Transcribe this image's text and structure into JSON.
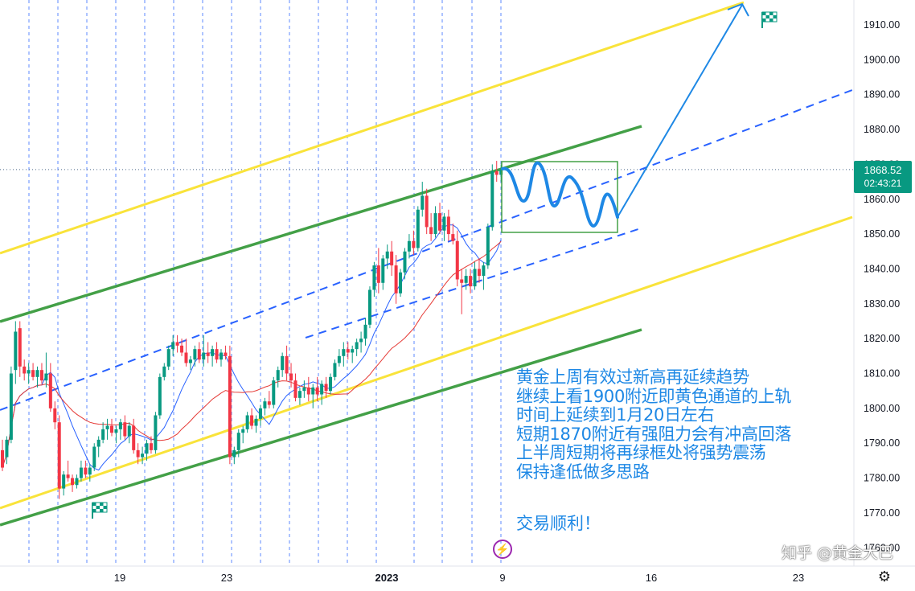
{
  "chart_data": {
    "type": "candlestick",
    "title": "",
    "y_axis": {
      "ticks": [
        "1910.00",
        "1900.00",
        "1890.00",
        "1880.00",
        "1870.00",
        "1860.00",
        "1850.00",
        "1840.00",
        "1830.00",
        "1820.00",
        "1810.00",
        "1800.00",
        "1790.00",
        "1780.00",
        "1770.00",
        "1760.00"
      ],
      "ylim": [
        1757,
        1914
      ]
    },
    "x_axis": {
      "ticks": [
        {
          "label": "19",
          "bold": false
        },
        {
          "label": "23",
          "bold": false
        },
        {
          "label": "2023",
          "bold": true
        },
        {
          "label": "9",
          "bold": false
        },
        {
          "label": "16",
          "bold": false
        },
        {
          "label": "23",
          "bold": false
        }
      ]
    },
    "last_price": "1868.52",
    "countdown": "02:43:21",
    "candles": [
      [
        1788,
        1791,
        1782,
        1783
      ],
      [
        1786,
        1792,
        1784,
        1791
      ],
      [
        1791,
        1812,
        1790,
        1810
      ],
      [
        1811,
        1825,
        1807,
        1822
      ],
      [
        1823,
        1825,
        1809,
        1812
      ],
      [
        1812,
        1814,
        1808,
        1810
      ],
      [
        1810,
        1813,
        1807,
        1811
      ],
      [
        1811,
        1813,
        1808,
        1809
      ],
      [
        1809,
        1812,
        1806,
        1811
      ],
      [
        1811,
        1813,
        1807,
        1808
      ],
      [
        1808,
        1816,
        1806,
        1810
      ],
      [
        1810,
        1813,
        1799,
        1800
      ],
      [
        1800,
        1802,
        1794,
        1796
      ],
      [
        1796,
        1798,
        1774,
        1777
      ],
      [
        1777,
        1782,
        1775,
        1781
      ],
      [
        1781,
        1785,
        1779,
        1780
      ],
      [
        1780,
        1781,
        1776,
        1778
      ],
      [
        1778,
        1781,
        1777,
        1780
      ],
      [
        1780,
        1785,
        1779,
        1783
      ],
      [
        1783,
        1785,
        1780,
        1781
      ],
      [
        1781,
        1784,
        1779,
        1783
      ],
      [
        1783,
        1790,
        1782,
        1789
      ],
      [
        1789,
        1792,
        1786,
        1791
      ],
      [
        1791,
        1796,
        1790,
        1794
      ],
      [
        1794,
        1797,
        1791,
        1795
      ],
      [
        1795,
        1797,
        1792,
        1793
      ],
      [
        1793,
        1795,
        1790,
        1794
      ],
      [
        1794,
        1797,
        1791,
        1796
      ],
      [
        1796,
        1798,
        1791,
        1792
      ],
      [
        1792,
        1796,
        1790,
        1795
      ],
      [
        1795,
        1797,
        1787,
        1788
      ],
      [
        1788,
        1790,
        1784,
        1786
      ],
      [
        1786,
        1789,
        1784,
        1787
      ],
      [
        1787,
        1791,
        1785,
        1790
      ],
      [
        1790,
        1792,
        1787,
        1788
      ],
      [
        1788,
        1799,
        1787,
        1798
      ],
      [
        1798,
        1810,
        1797,
        1809
      ],
      [
        1809,
        1813,
        1808,
        1812
      ],
      [
        1812,
        1818,
        1811,
        1817
      ],
      [
        1817,
        1821,
        1815,
        1819
      ],
      [
        1819,
        1821,
        1816,
        1818
      ],
      [
        1818,
        1820,
        1815,
        1816
      ],
      [
        1816,
        1820,
        1812,
        1813
      ],
      [
        1813,
        1815,
        1811,
        1814
      ],
      [
        1814,
        1818,
        1812,
        1817
      ],
      [
        1817,
        1819,
        1813,
        1814
      ],
      [
        1814,
        1821,
        1812,
        1816
      ],
      [
        1816,
        1819,
        1813,
        1815
      ],
      [
        1815,
        1818,
        1812,
        1817
      ],
      [
        1817,
        1819,
        1813,
        1814
      ],
      [
        1814,
        1817,
        1812,
        1816
      ],
      [
        1816,
        1818,
        1814,
        1815
      ],
      [
        1815,
        1818,
        1784,
        1786
      ],
      [
        1786,
        1789,
        1784,
        1788
      ],
      [
        1788,
        1794,
        1786,
        1793
      ],
      [
        1793,
        1795,
        1790,
        1794
      ],
      [
        1794,
        1799,
        1793,
        1798
      ],
      [
        1798,
        1800,
        1794,
        1795
      ],
      [
        1795,
        1798,
        1793,
        1797
      ],
      [
        1797,
        1801,
        1795,
        1800
      ],
      [
        1800,
        1803,
        1798,
        1802
      ],
      [
        1802,
        1805,
        1800,
        1801
      ],
      [
        1801,
        1809,
        1800,
        1808
      ],
      [
        1808,
        1812,
        1806,
        1811
      ],
      [
        1811,
        1816,
        1809,
        1815
      ],
      [
        1815,
        1818,
        1808,
        1810
      ],
      [
        1810,
        1813,
        1806,
        1808
      ],
      [
        1808,
        1810,
        1802,
        1803
      ],
      [
        1803,
        1806,
        1801,
        1805
      ],
      [
        1805,
        1808,
        1803,
        1806
      ],
      [
        1806,
        1809,
        1802,
        1804
      ],
      [
        1804,
        1807,
        1800,
        1806
      ],
      [
        1806,
        1809,
        1802,
        1804
      ],
      [
        1804,
        1808,
        1801,
        1807
      ],
      [
        1807,
        1809,
        1803,
        1805
      ],
      [
        1805,
        1810,
        1804,
        1809
      ],
      [
        1809,
        1814,
        1808,
        1813
      ],
      [
        1813,
        1817,
        1812,
        1815
      ],
      [
        1815,
        1819,
        1812,
        1817
      ],
      [
        1817,
        1819,
        1814,
        1816
      ],
      [
        1816,
        1818,
        1813,
        1817
      ],
      [
        1817,
        1820,
        1815,
        1819
      ],
      [
        1819,
        1822,
        1816,
        1820
      ],
      [
        1820,
        1826,
        1818,
        1824
      ],
      [
        1824,
        1835,
        1823,
        1834
      ],
      [
        1834,
        1842,
        1832,
        1841
      ],
      [
        1841,
        1846,
        1833,
        1836
      ],
      [
        1836,
        1844,
        1834,
        1843
      ],
      [
        1843,
        1847,
        1840,
        1845
      ],
      [
        1845,
        1848,
        1838,
        1841
      ],
      [
        1841,
        1844,
        1830,
        1833
      ],
      [
        1833,
        1840,
        1832,
        1839
      ],
      [
        1839,
        1846,
        1837,
        1845
      ],
      [
        1845,
        1850,
        1843,
        1848
      ],
      [
        1848,
        1851,
        1844,
        1846
      ],
      [
        1846,
        1858,
        1845,
        1857
      ],
      [
        1857,
        1865,
        1855,
        1861
      ],
      [
        1861,
        1863,
        1850,
        1852
      ],
      [
        1852,
        1856,
        1848,
        1850
      ],
      [
        1850,
        1858,
        1849,
        1856
      ],
      [
        1856,
        1859,
        1850,
        1851
      ],
      [
        1851,
        1856,
        1848,
        1855
      ],
      [
        1855,
        1857,
        1848,
        1850
      ],
      [
        1850,
        1853,
        1847,
        1848
      ],
      [
        1848,
        1851,
        1835,
        1837
      ],
      [
        1837,
        1840,
        1827,
        1836
      ],
      [
        1836,
        1840,
        1834,
        1838
      ],
      [
        1838,
        1840,
        1833,
        1835
      ],
      [
        1835,
        1842,
        1834,
        1840
      ],
      [
        1840,
        1843,
        1836,
        1838
      ],
      [
        1838,
        1842,
        1834,
        1841
      ],
      [
        1841,
        1853,
        1840,
        1852
      ],
      [
        1852,
        1870,
        1851,
        1868
      ],
      [
        1868,
        1871,
        1865,
        1867
      ],
      [
        1867,
        1870,
        1865,
        1868.52
      ]
    ]
  },
  "annotations": {
    "lines": [
      "黄金上周有效过新高再延续趋势",
      "继续上看1900附近即黄色通道的上轨",
      "时间上延续到1月20日左右",
      "短期1870附近有强阻力会有冲高回落",
      "上半周短期将再绿框处将强势震荡",
      "保持逢低做多思路"
    ],
    "greeting": "交易顺利！"
  },
  "watermark": "知乎 @黄金大巴",
  "colors": {
    "up": "#089981",
    "down": "#f23645",
    "channel_yellow": "#f9e33a",
    "channel_green": "#43a047",
    "mid_dashed": "#2962ff",
    "projection": "#1e88e5",
    "ma_fast": "#2962ff",
    "ma_slow": "#e53935",
    "grid_dashed": "#2962ff",
    "text_blue": "#1e88e5"
  },
  "icons": [
    "flag-checkered-icon",
    "lightning-icon",
    "gear-icon"
  ]
}
